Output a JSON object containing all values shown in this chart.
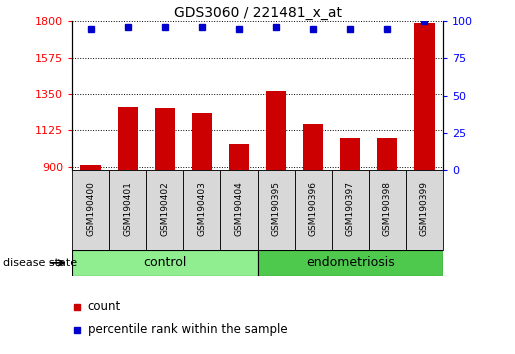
{
  "title": "GDS3060 / 221481_x_at",
  "samples": [
    "GSM190400",
    "GSM190401",
    "GSM190402",
    "GSM190403",
    "GSM190404",
    "GSM190395",
    "GSM190396",
    "GSM190397",
    "GSM190398",
    "GSM190399"
  ],
  "counts": [
    910,
    1270,
    1265,
    1230,
    1040,
    1370,
    1165,
    1075,
    1080,
    1790
  ],
  "percentile_ranks": [
    95,
    96,
    96,
    96,
    95,
    96,
    95,
    95,
    95,
    100
  ],
  "ylim_left": [
    880,
    1800
  ],
  "ylim_right": [
    0,
    100
  ],
  "yticks_left": [
    900,
    1125,
    1350,
    1575,
    1800
  ],
  "yticks_right": [
    0,
    25,
    50,
    75,
    100
  ],
  "bar_color": "#cc0000",
  "dot_color": "#0000cc",
  "control_color": "#90ee90",
  "endometriosis_color": "#4ec94e",
  "group_label_control": "control",
  "group_label_endometriosis": "endometriosis",
  "disease_state_label": "disease state",
  "legend_count": "count",
  "legend_percentile": "percentile rank within the sample",
  "background_color": "#ffffff",
  "n_control": 5,
  "n_total": 10
}
